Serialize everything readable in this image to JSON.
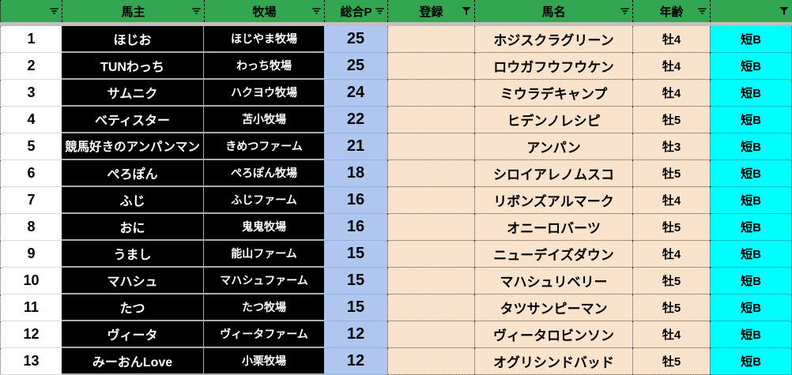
{
  "colors": {
    "header_green": "#33A652",
    "strip_gray": "#BFBFBF",
    "points_blue": "#AFC7EE",
    "row_tan": "#FAE3CD",
    "tag_cyan": "#00FFFF",
    "cell_black": "#000000"
  },
  "table": {
    "headers": [
      {
        "key": "rank",
        "label": "",
        "filter": "dropdown"
      },
      {
        "key": "owner",
        "label": "馬主",
        "filter": "dropdown"
      },
      {
        "key": "farm",
        "label": "牧場",
        "filter": "dropdown"
      },
      {
        "key": "points",
        "label": "総合P",
        "filter": "dropdown"
      },
      {
        "key": "registration",
        "label": "登録",
        "filter": "funnel"
      },
      {
        "key": "horse",
        "label": "馬名",
        "filter": "dropdown"
      },
      {
        "key": "age",
        "label": "年齢",
        "filter": "dropdown"
      },
      {
        "key": "tag",
        "label": "",
        "filter": "funnel"
      }
    ],
    "rows": [
      {
        "rank": "1",
        "owner": "ほじお",
        "farm": "ほじやま牧場",
        "points": "25",
        "registration": "",
        "horse": "ホジスクラグリーン",
        "age": "牡4",
        "tag": "短B"
      },
      {
        "rank": "2",
        "owner": "TUNわっち",
        "farm": "わっち牧場",
        "points": "25",
        "registration": "",
        "horse": "ロウガフウフウケン",
        "age": "牡4",
        "tag": "短B"
      },
      {
        "rank": "3",
        "owner": "サムニク",
        "farm": "ハクヨウ牧場",
        "points": "24",
        "registration": "",
        "horse": "ミウラデキャンプ",
        "age": "牡4",
        "tag": "短B"
      },
      {
        "rank": "4",
        "owner": "ベティスター",
        "farm": "苫小牧場",
        "points": "22",
        "registration": "",
        "horse": "ヒデンノレシピ",
        "age": "牡5",
        "tag": "短B"
      },
      {
        "rank": "5",
        "owner": "競馬好きのアンパンマン",
        "farm": "きめつファーム",
        "points": "21",
        "registration": "",
        "horse": "アンパン",
        "age": "牡3",
        "tag": "短B"
      },
      {
        "rank": "6",
        "owner": "ぺろぽん",
        "farm": "ぺろぽん牧場",
        "points": "18",
        "registration": "",
        "horse": "シロイアレノムスコ",
        "age": "牡5",
        "tag": "短B"
      },
      {
        "rank": "7",
        "owner": "ふじ",
        "farm": "ふじファーム",
        "points": "16",
        "registration": "",
        "horse": "リボンズアルマーク",
        "age": "牡4",
        "tag": "短B"
      },
      {
        "rank": "8",
        "owner": "おに",
        "farm": "鬼鬼牧場",
        "points": "16",
        "registration": "",
        "horse": "オニーロバーツ",
        "age": "牡5",
        "tag": "短B"
      },
      {
        "rank": "9",
        "owner": "うまし",
        "farm": "能山ファーム",
        "points": "15",
        "registration": "",
        "horse": "ニューデイズダウン",
        "age": "牡4",
        "tag": "短B"
      },
      {
        "rank": "10",
        "owner": "マハシュ",
        "farm": "マハシュファーム",
        "points": "15",
        "registration": "",
        "horse": "マハシュリベリー",
        "age": "牡5",
        "tag": "短B"
      },
      {
        "rank": "11",
        "owner": "たつ",
        "farm": "たつ牧場",
        "points": "15",
        "registration": "",
        "horse": "タツサンピーマン",
        "age": "牡5",
        "tag": "短B"
      },
      {
        "rank": "12",
        "owner": "ヴィータ",
        "farm": "ヴィータファーム",
        "points": "12",
        "registration": "",
        "horse": "ヴィータロビンソン",
        "age": "牡4",
        "tag": "短B"
      },
      {
        "rank": "13",
        "owner": "みーおんLove",
        "farm": "小栗牧場",
        "points": "12",
        "registration": "",
        "horse": "オグリシンドバッド",
        "age": "牡5",
        "tag": "短B"
      }
    ]
  }
}
